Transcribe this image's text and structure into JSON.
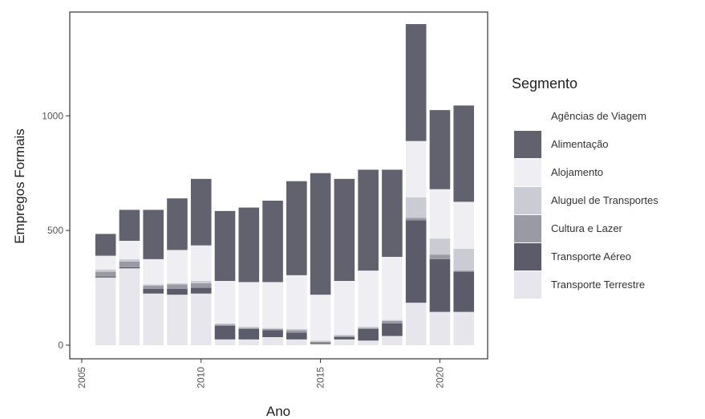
{
  "chart_data": {
    "type": "bar",
    "stacked": true,
    "xlabel": "Ano",
    "ylabel": "Empregos Formais",
    "xlim": [
      2004.5,
      2022
    ],
    "ylim": [
      0,
      1400
    ],
    "x_ticks": [
      "2005",
      "2010",
      "2015",
      "2020"
    ],
    "x_tick_values": [
      2005,
      2010,
      2015,
      2020
    ],
    "y_ticks": [
      "0",
      "500",
      "1000"
    ],
    "y_tick_values": [
      0,
      500,
      1000
    ],
    "grid": false,
    "legend_position": "right",
    "legend_title": "Segmento",
    "x": [
      2006,
      2007,
      2008,
      2009,
      2010,
      2011,
      2012,
      2013,
      2014,
      2015,
      2016,
      2017,
      2018,
      2019,
      2020,
      2021
    ],
    "series": [
      {
        "name": "Transporte Terrestre",
        "color": "#e6e6ec",
        "values": [
          295,
          335,
          225,
          220,
          225,
          25,
          25,
          35,
          25,
          5,
          25,
          20,
          40,
          185,
          145,
          145
        ]
      },
      {
        "name": "Transporte Aéreo",
        "color": "#5b5b6a",
        "values": [
          5,
          5,
          20,
          25,
          25,
          60,
          45,
          30,
          30,
          5,
          10,
          50,
          55,
          360,
          230,
          175
        ]
      },
      {
        "name": "Cultura e Lazer",
        "color": "#9a9aa4",
        "values": [
          20,
          25,
          15,
          20,
          20,
          5,
          5,
          5,
          10,
          5,
          5,
          5,
          10,
          10,
          20,
          5
        ]
      },
      {
        "name": "Aluguel de Transportes",
        "color": "#cbcbd3",
        "values": [
          10,
          10,
          5,
          5,
          10,
          5,
          5,
          5,
          5,
          5,
          5,
          5,
          5,
          90,
          70,
          95
        ]
      },
      {
        "name": "Alojamento",
        "color": "#eeeef3",
        "values": [
          60,
          80,
          110,
          145,
          155,
          185,
          195,
          200,
          235,
          200,
          235,
          245,
          275,
          245,
          215,
          205
        ]
      },
      {
        "name": "Alimentação",
        "color": "#62626f",
        "values": [
          95,
          135,
          215,
          225,
          290,
          305,
          325,
          355,
          410,
          530,
          445,
          440,
          380,
          510,
          345,
          420
        ]
      },
      {
        "name": "Agências de Viagem",
        "color": "#ffffff",
        "values": [
          0,
          0,
          0,
          0,
          0,
          0,
          0,
          0,
          0,
          0,
          0,
          0,
          0,
          0,
          0,
          0
        ]
      }
    ]
  }
}
